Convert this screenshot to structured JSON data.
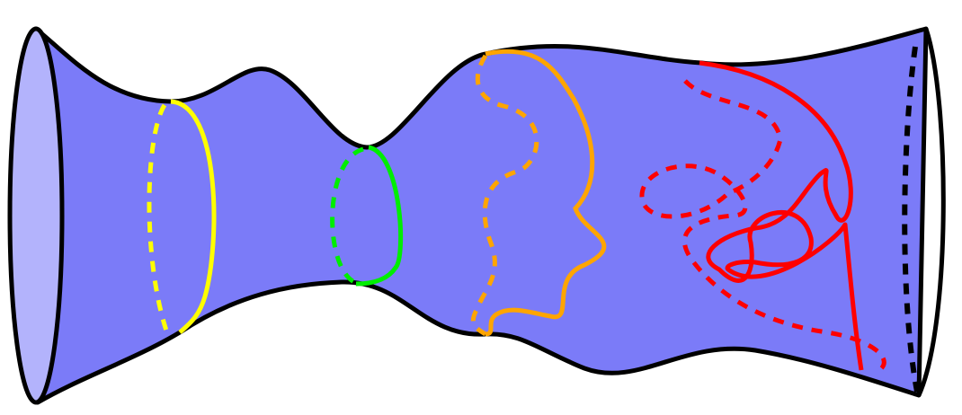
{
  "colors": {
    "background": "#ffffff",
    "surface_fill": "#7b7bf8",
    "left_end_fill": "#b3b3fc",
    "outline": "#000000",
    "loop_1": "#ffff00",
    "loop_2": "#00ee00",
    "loop_3": "#ffa500",
    "loop_4": "#ff0000",
    "right_boundary": "#000000"
  },
  "diagram": {
    "subject": "tube-surface",
    "curves": [
      {
        "id": "yellow-loop",
        "style": "front solid, back dashed"
      },
      {
        "id": "green-loop",
        "style": "front solid, back dashed"
      },
      {
        "id": "orange-loop",
        "style": "front solid, back dashed"
      },
      {
        "id": "red-loop",
        "style": "front solid, back dashed"
      },
      {
        "id": "right-boundary",
        "style": "dashed"
      }
    ]
  }
}
